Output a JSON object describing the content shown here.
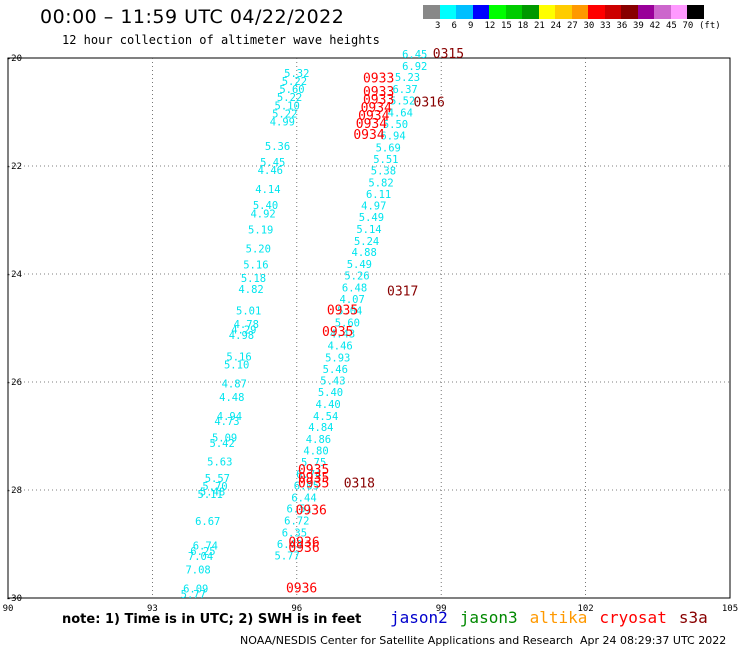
{
  "header": {
    "title": "00:00 – 11:59 UTC 04/22/2022",
    "subtitle": "12 hour collection of altimeter wave heights"
  },
  "legend": {
    "colors": [
      "#888888",
      "#00ffff",
      "#00bfff",
      "#0000ff",
      "#00ff00",
      "#00cc00",
      "#009900",
      "#ffff00",
      "#ffcc00",
      "#ff9900",
      "#ff0000",
      "#cc0000",
      "#880000",
      "#990099",
      "#cc66cc",
      "#ff99ff",
      "#000000"
    ],
    "ticks": [
      "3",
      "6",
      "9",
      "12",
      "15",
      "18",
      "21",
      "24",
      "27",
      "30",
      "33",
      "36",
      "39",
      "42",
      "45",
      "70",
      "(ft)"
    ]
  },
  "footer": {
    "note": "note: 1) Time is in UTC; 2) SWH is in feet",
    "satellites": [
      {
        "name": "jason2",
        "color": "#0000cc"
      },
      {
        "name": "jason3",
        "color": "#008800"
      },
      {
        "name": "altika",
        "color": "#ff9900"
      },
      {
        "name": "cryosat",
        "color": "#ff0000"
      },
      {
        "name": "s3a",
        "color": "#880000"
      }
    ],
    "credit": "NOAA/NESDIS Center for Satellite Applications and Research",
    "timestamp": "Apr 24 08:29:37 UTC 2022"
  },
  "chart_data": {
    "type": "scatter",
    "xlim": [
      90,
      105
    ],
    "ylim": [
      -30,
      -20
    ],
    "x_ticks": [
      "90",
      "93",
      "96",
      "99",
      "102",
      "105"
    ],
    "y_ticks": [
      "-20",
      "-22",
      "-24",
      "-26",
      "-28",
      "-30"
    ],
    "grid": true,
    "series": [
      {
        "color": "#00e5ee",
        "points": [
          {
            "x": 98.45,
            "y": -20.0,
            "label": "6.45"
          },
          {
            "x": 98.45,
            "y": -20.22,
            "label": "6.92"
          },
          {
            "x": 98.3,
            "y": -20.43,
            "label": "5.23"
          },
          {
            "x": 98.25,
            "y": -20.65,
            "label": "6.37"
          },
          {
            "x": 98.2,
            "y": -20.86,
            "label": "5.52"
          },
          {
            "x": 98.15,
            "y": -21.08,
            "label": "4.64"
          },
          {
            "x": 98.05,
            "y": -21.3,
            "label": "5.50"
          },
          {
            "x": 98.0,
            "y": -21.51,
            "label": "6.94"
          },
          {
            "x": 97.9,
            "y": -21.73,
            "label": "5.69"
          },
          {
            "x": 97.85,
            "y": -21.94,
            "label": "5.51"
          },
          {
            "x": 97.8,
            "y": -22.16,
            "label": "5.38"
          },
          {
            "x": 97.75,
            "y": -22.38,
            "label": "5.82"
          },
          {
            "x": 97.7,
            "y": -22.59,
            "label": "6.11"
          },
          {
            "x": 97.6,
            "y": -22.81,
            "label": "4.97"
          },
          {
            "x": 97.55,
            "y": -23.02,
            "label": "5.49"
          },
          {
            "x": 97.5,
            "y": -23.24,
            "label": "5.14"
          },
          {
            "x": 97.45,
            "y": -23.46,
            "label": "5.24"
          },
          {
            "x": 97.4,
            "y": -23.67,
            "label": "4.88"
          },
          {
            "x": 97.3,
            "y": -23.89,
            "label": "5.49"
          },
          {
            "x": 97.25,
            "y": -24.1,
            "label": "5.26"
          },
          {
            "x": 97.2,
            "y": -24.32,
            "label": "6.48"
          },
          {
            "x": 97.15,
            "y": -24.54,
            "label": "4.07"
          },
          {
            "x": 97.1,
            "y": -24.75,
            "label": "5.04"
          },
          {
            "x": 97.05,
            "y": -24.97,
            "label": "5.60"
          },
          {
            "x": 96.95,
            "y": -25.18,
            "label": "4.43"
          },
          {
            "x": 96.9,
            "y": -25.4,
            "label": "4.46"
          },
          {
            "x": 96.85,
            "y": -25.62,
            "label": "5.93"
          },
          {
            "x": 96.8,
            "y": -25.83,
            "label": "5.46"
          },
          {
            "x": 96.75,
            "y": -26.05,
            "label": "5.43"
          },
          {
            "x": 96.7,
            "y": -26.26,
            "label": "5.40"
          },
          {
            "x": 96.65,
            "y": -26.48,
            "label": "4.40"
          },
          {
            "x": 96.6,
            "y": -26.7,
            "label": "4.54"
          },
          {
            "x": 96.5,
            "y": -26.91,
            "label": "4.84"
          },
          {
            "x": 96.45,
            "y": -27.13,
            "label": "4.86"
          },
          {
            "x": 96.4,
            "y": -27.34,
            "label": "4.80"
          },
          {
            "x": 96.35,
            "y": -27.56,
            "label": "5.75"
          },
          {
            "x": 96.25,
            "y": -27.78,
            "label": "6.74"
          },
          {
            "x": 96.2,
            "y": -27.99,
            "label": "6.05"
          },
          {
            "x": 96.15,
            "y": -28.21,
            "label": "6.44"
          },
          {
            "x": 96.05,
            "y": -28.42,
            "label": "6.51"
          },
          {
            "x": 96.0,
            "y": -28.64,
            "label": "6.72"
          },
          {
            "x": 95.95,
            "y": -28.86,
            "label": "6.35"
          },
          {
            "x": 95.85,
            "y": -29.07,
            "label": "6.43"
          },
          {
            "x": 95.8,
            "y": -29.29,
            "label": "5.77"
          }
        ]
      },
      {
        "color": "#00e5ee",
        "points": [
          {
            "x": 96.0,
            "y": -20.35,
            "label": "5.32"
          },
          {
            "x": 95.95,
            "y": -20.5,
            "label": "5.22"
          },
          {
            "x": 95.9,
            "y": -20.65,
            "label": "5.60"
          },
          {
            "x": 95.85,
            "y": -20.8,
            "label": "5.22"
          },
          {
            "x": 95.8,
            "y": -20.95,
            "label": "5.10"
          },
          {
            "x": 95.75,
            "y": -21.1,
            "label": "5.22"
          },
          {
            "x": 95.7,
            "y": -21.25,
            "label": "4.99"
          },
          {
            "x": 95.6,
            "y": -21.7,
            "label": "5.36"
          },
          {
            "x": 95.5,
            "y": -22.0,
            "label": "5.45"
          },
          {
            "x": 95.45,
            "y": -22.15,
            "label": "4.46"
          },
          {
            "x": 95.4,
            "y": -22.5,
            "label": "4.14"
          },
          {
            "x": 95.35,
            "y": -22.8,
            "label": "5.40"
          },
          {
            "x": 95.3,
            "y": -22.95,
            "label": "4.92"
          },
          {
            "x": 95.25,
            "y": -23.25,
            "label": "5.19"
          },
          {
            "x": 95.2,
            "y": -23.6,
            "label": "5.20"
          },
          {
            "x": 95.15,
            "y": -23.9,
            "label": "5.16"
          },
          {
            "x": 95.1,
            "y": -24.15,
            "label": "5.18"
          },
          {
            "x": 95.05,
            "y": -24.35,
            "label": "4.82"
          },
          {
            "x": 95.0,
            "y": -24.75,
            "label": "5.01"
          },
          {
            "x": 94.95,
            "y": -25.0,
            "label": "4.78"
          },
          {
            "x": 94.9,
            "y": -25.1,
            "label": "4.29"
          },
          {
            "x": 94.85,
            "y": -25.2,
            "label": "4.98"
          },
          {
            "x": 94.8,
            "y": -25.6,
            "label": "5.16"
          },
          {
            "x": 94.75,
            "y": -25.75,
            "label": "5.10"
          },
          {
            "x": 94.7,
            "y": -26.1,
            "label": "4.87"
          },
          {
            "x": 94.65,
            "y": -26.35,
            "label": "4.48"
          },
          {
            "x": 94.6,
            "y": -26.7,
            "label": "4.94"
          },
          {
            "x": 94.55,
            "y": -26.8,
            "label": "4.73"
          },
          {
            "x": 94.5,
            "y": -27.1,
            "label": "5.09"
          },
          {
            "x": 94.45,
            "y": -27.2,
            "label": "5.42"
          },
          {
            "x": 94.4,
            "y": -27.55,
            "label": "5.63"
          },
          {
            "x": 94.35,
            "y": -27.85,
            "label": "5.57"
          },
          {
            "x": 94.3,
            "y": -28.0,
            "label": "5.70"
          },
          {
            "x": 94.25,
            "y": -28.1,
            "label": "5.48"
          },
          {
            "x": 94.2,
            "y": -28.15,
            "label": "5.11"
          },
          {
            "x": 94.15,
            "y": -28.65,
            "label": "6.67"
          },
          {
            "x": 94.1,
            "y": -29.1,
            "label": "6.74"
          },
          {
            "x": 94.05,
            "y": -29.2,
            "label": "6.25"
          },
          {
            "x": 94.0,
            "y": -29.3,
            "label": "7.04"
          },
          {
            "x": 93.95,
            "y": -29.55,
            "label": "7.08"
          },
          {
            "x": 93.9,
            "y": -29.9,
            "label": "6.09"
          },
          {
            "x": 93.85,
            "y": -30.0,
            "label": "5.77"
          }
        ]
      }
    ],
    "time_labels": [
      {
        "x": 97.7,
        "y": -20.45,
        "text": "0933",
        "color": "#ff0000"
      },
      {
        "x": 97.7,
        "y": -20.7,
        "text": "0933",
        "color": "#ff0000"
      },
      {
        "x": 97.7,
        "y": -20.85,
        "text": "0933",
        "color": "#ff0000"
      },
      {
        "x": 97.65,
        "y": -21.0,
        "text": "0934",
        "color": "#ff0000"
      },
      {
        "x": 97.6,
        "y": -21.15,
        "text": "0934",
        "color": "#ff0000"
      },
      {
        "x": 97.55,
        "y": -21.3,
        "text": "0934",
        "color": "#ff0000"
      },
      {
        "x": 97.5,
        "y": -21.5,
        "text": "0934",
        "color": "#ff0000"
      },
      {
        "x": 96.95,
        "y": -24.75,
        "text": "0935",
        "color": "#ff0000"
      },
      {
        "x": 96.85,
        "y": -25.15,
        "text": "0935",
        "color": "#ff0000"
      },
      {
        "x": 96.35,
        "y": -27.7,
        "text": "0935",
        "color": "#ff0000"
      },
      {
        "x": 96.35,
        "y": -27.85,
        "text": "0935",
        "color": "#ff0000"
      },
      {
        "x": 96.35,
        "y": -27.95,
        "text": "0935",
        "color": "#ff0000"
      },
      {
        "x": 96.3,
        "y": -28.45,
        "text": "0936",
        "color": "#ff0000"
      },
      {
        "x": 96.15,
        "y": -29.05,
        "text": "0936",
        "color": "#ff0000"
      },
      {
        "x": 96.15,
        "y": -29.15,
        "text": "0936",
        "color": "#ff0000"
      },
      {
        "x": 96.1,
        "y": -29.9,
        "text": "0936",
        "color": "#ff0000"
      },
      {
        "x": 99.15,
        "y": -20.0,
        "text": "0315",
        "color": "#880000"
      },
      {
        "x": 98.75,
        "y": -20.9,
        "text": "0316",
        "color": "#880000"
      },
      {
        "x": 98.2,
        "y": -24.4,
        "text": "0317",
        "color": "#880000"
      },
      {
        "x": 97.3,
        "y": -27.95,
        "text": "0318",
        "color": "#880000"
      }
    ]
  }
}
